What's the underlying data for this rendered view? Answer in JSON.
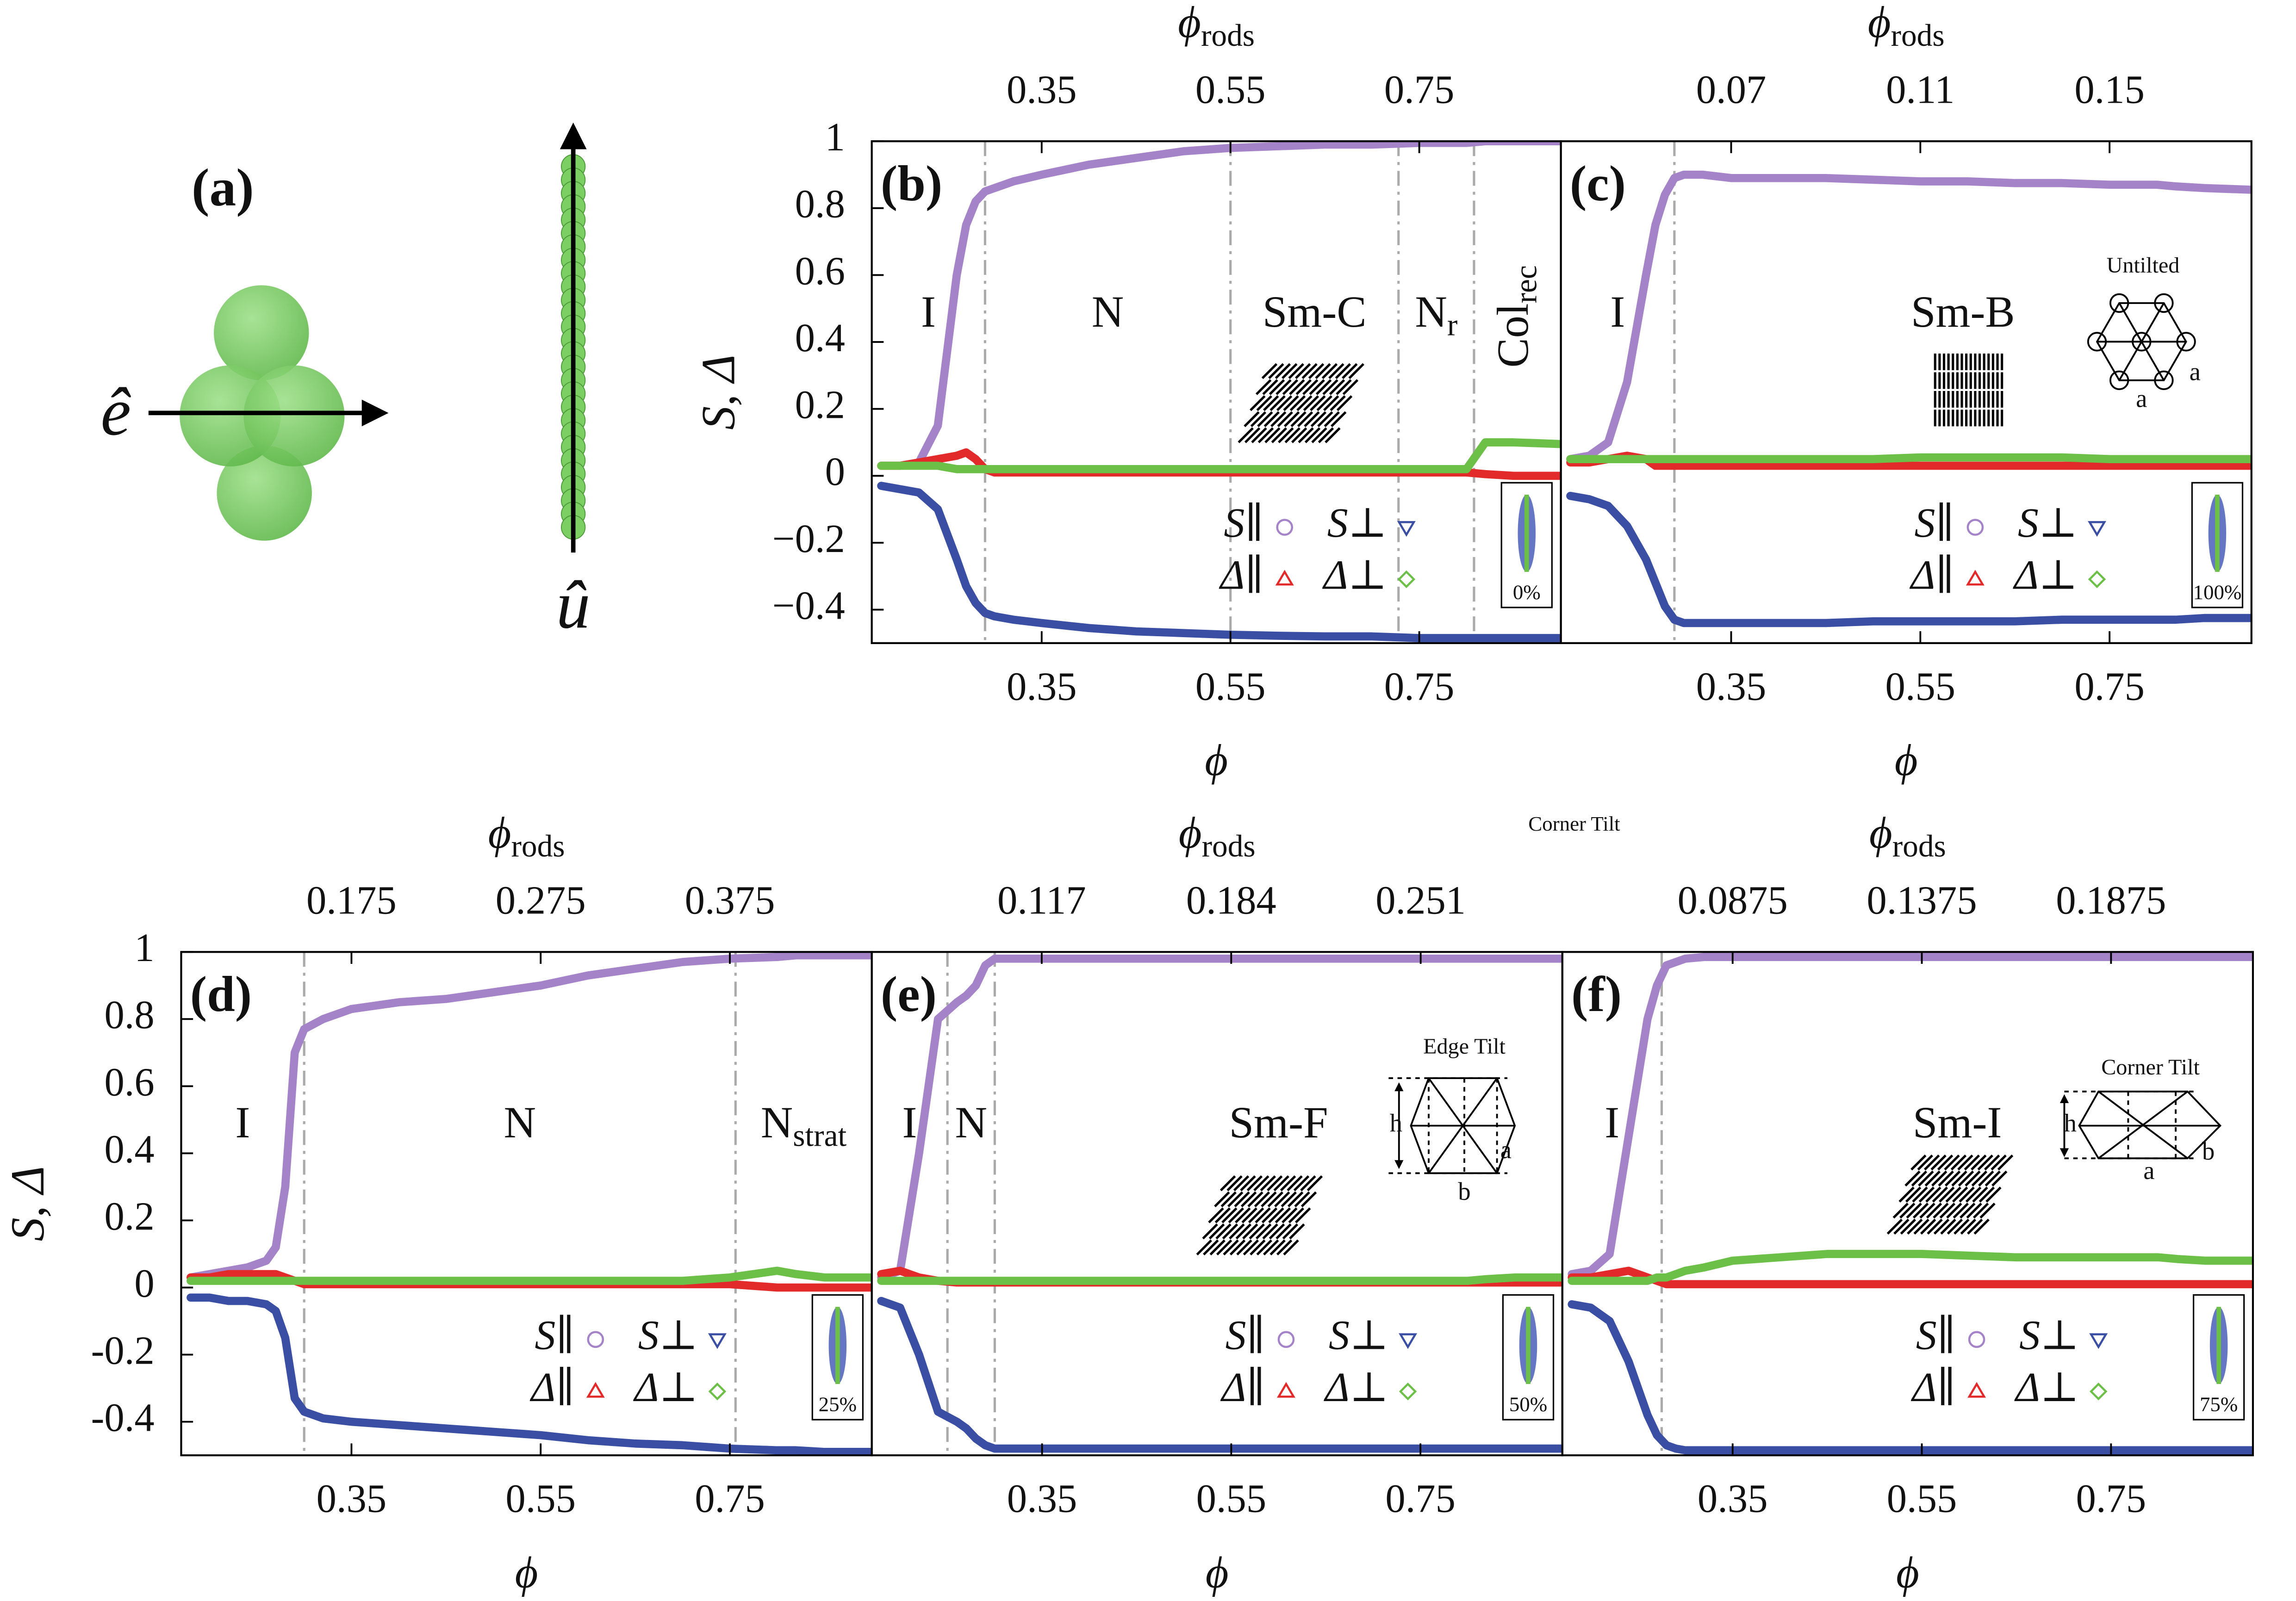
{
  "panel_a": {
    "label": "(a)",
    "e_label": "ê",
    "u_label": "û"
  },
  "note": "Corner Tilt",
  "chart_data": [
    {
      "type": "line",
      "panel_label": "(b)",
      "xlabel": "ϕ",
      "x2label": "ϕ",
      "x2label_sub": "rods",
      "ylabel": "S, Δ",
      "xlim": [
        0.17,
        0.9
      ],
      "xticks": [
        0.35,
        0.55,
        0.75
      ],
      "x2lim": [
        0.17,
        0.9
      ],
      "x2ticks": [
        0.35,
        0.55,
        0.75
      ],
      "ylim": [
        -0.5,
        1
      ],
      "yticks": [
        {
          "value": -0.4,
          "label": "−0.4"
        },
        {
          "value": -0.2,
          "label": "−0.2"
        },
        0,
        0.2,
        0.4,
        0.6,
        0.8,
        1
      ],
      "legend": "lower right",
      "inset_label": "0%",
      "transitions": [
        0.29,
        0.55,
        0.728,
        0.808
      ],
      "phases": [
        {
          "label": "I"
        },
        {
          "label": "N"
        },
        {
          "label": "Sm-C"
        },
        {
          "label": "N",
          "sub": "r"
        },
        {
          "label": "Col",
          "sub": "rec",
          "rotate": true
        }
      ],
      "x": [
        0.18,
        0.2,
        0.22,
        0.24,
        0.26,
        0.27,
        0.28,
        0.29,
        0.3,
        0.32,
        0.35,
        0.4,
        0.45,
        0.5,
        0.55,
        0.6,
        0.65,
        0.7,
        0.75,
        0.8,
        0.82,
        0.85,
        0.9
      ],
      "series": [
        {
          "name": "S∥",
          "color": "#a583c9",
          "marker": "circle",
          "values": [
            0.03,
            0.03,
            0.04,
            0.15,
            0.6,
            0.75,
            0.82,
            0.85,
            0.86,
            0.88,
            0.9,
            0.93,
            0.95,
            0.97,
            0.98,
            0.985,
            0.99,
            0.99,
            0.995,
            0.995,
            1,
            1,
            1
          ]
        },
        {
          "name": "S⊥",
          "color": "#3a4ea3",
          "marker": "triangle-down",
          "values": [
            -0.03,
            -0.04,
            -0.05,
            -0.1,
            -0.25,
            -0.33,
            -0.38,
            -0.41,
            -0.42,
            -0.43,
            -0.44,
            -0.455,
            -0.465,
            -0.47,
            -0.475,
            -0.478,
            -0.48,
            -0.48,
            -0.485,
            -0.485,
            -0.485,
            -0.485,
            -0.485
          ]
        },
        {
          "name": "Δ∥",
          "color": "#e32a2a",
          "marker": "triangle-up",
          "values": [
            0.03,
            0.03,
            0.04,
            0.05,
            0.06,
            0.07,
            0.05,
            0.02,
            0.01,
            0.01,
            0.01,
            0.01,
            0.01,
            0.01,
            0.01,
            0.01,
            0.01,
            0.01,
            0.01,
            0.01,
            0.005,
            0,
            0
          ]
        },
        {
          "name": "Δ⊥",
          "color": "#6cbf47",
          "marker": "diamond",
          "values": [
            0.03,
            0.03,
            0.03,
            0.03,
            0.02,
            0.02,
            0.02,
            0.02,
            0.02,
            0.02,
            0.02,
            0.02,
            0.02,
            0.02,
            0.02,
            0.02,
            0.02,
            0.02,
            0.02,
            0.02,
            0.1,
            0.1,
            0.095
          ]
        }
      ]
    },
    {
      "type": "line",
      "panel_label": "(c)",
      "xlabel": "ϕ",
      "x2label": "ϕ",
      "x2label_sub": "rods",
      "xlim": [
        0.17,
        0.9
      ],
      "xticks": [
        0.35,
        0.55,
        0.75
      ],
      "x2lim": [
        0.034,
        0.18
      ],
      "x2ticks": [
        0.07,
        0.11,
        0.15
      ],
      "ylim": [
        -0.5,
        1
      ],
      "legend": "lower right",
      "inset_label": "100%",
      "transitions": [
        0.29
      ],
      "phases": [
        {
          "label": "I"
        },
        {
          "label": "Sm-B"
        }
      ],
      "lattice": {
        "title": "Untilted",
        "labels": [
          "a",
          "a"
        ]
      },
      "x": [
        0.18,
        0.2,
        0.22,
        0.24,
        0.26,
        0.27,
        0.28,
        0.29,
        0.3,
        0.32,
        0.35,
        0.4,
        0.45,
        0.5,
        0.55,
        0.6,
        0.65,
        0.7,
        0.75,
        0.8,
        0.82,
        0.85,
        0.9
      ],
      "series": [
        {
          "name": "S∥",
          "color": "#a583c9",
          "marker": "circle",
          "values": [
            0.05,
            0.06,
            0.1,
            0.28,
            0.6,
            0.75,
            0.84,
            0.89,
            0.9,
            0.9,
            0.89,
            0.89,
            0.89,
            0.885,
            0.88,
            0.88,
            0.875,
            0.875,
            0.87,
            0.87,
            0.865,
            0.86,
            0.855
          ]
        },
        {
          "name": "S⊥",
          "color": "#3a4ea3",
          "marker": "triangle-down",
          "values": [
            -0.06,
            -0.07,
            -0.09,
            -0.15,
            -0.25,
            -0.32,
            -0.39,
            -0.43,
            -0.44,
            -0.44,
            -0.44,
            -0.44,
            -0.44,
            -0.435,
            -0.435,
            -0.435,
            -0.435,
            -0.43,
            -0.43,
            -0.43,
            -0.43,
            -0.425,
            -0.425
          ]
        },
        {
          "name": "Δ∥",
          "color": "#e32a2a",
          "marker": "triangle-up",
          "values": [
            0.04,
            0.04,
            0.05,
            0.06,
            0.05,
            0.03,
            0.03,
            0.03,
            0.03,
            0.03,
            0.03,
            0.03,
            0.03,
            0.03,
            0.03,
            0.03,
            0.03,
            0.03,
            0.03,
            0.03,
            0.03,
            0.03,
            0.03
          ]
        },
        {
          "name": "Δ⊥",
          "color": "#6cbf47",
          "marker": "diamond",
          "values": [
            0.05,
            0.05,
            0.05,
            0.05,
            0.05,
            0.05,
            0.05,
            0.05,
            0.05,
            0.05,
            0.05,
            0.05,
            0.05,
            0.05,
            0.055,
            0.055,
            0.055,
            0.055,
            0.05,
            0.05,
            0.05,
            0.05,
            0.05
          ]
        }
      ]
    },
    {
      "type": "line",
      "panel_label": "(d)",
      "xlabel": "ϕ",
      "x2label": "ϕ",
      "x2label_sub": "rods",
      "ylabel": "S, Δ",
      "xlim": [
        0.17,
        0.9
      ],
      "xticks": [
        0.35,
        0.55,
        0.75
      ],
      "x2lim": [
        0.085,
        0.45
      ],
      "x2ticks": [
        0.175,
        0.275,
        0.375
      ],
      "ylim": [
        -0.5,
        1
      ],
      "yticks": [
        -0.4,
        -0.2,
        0,
        0.2,
        0.4,
        0.6,
        0.8,
        1
      ],
      "legend": "lower right",
      "inset_label": "25%",
      "transitions": [
        0.3,
        0.756
      ],
      "phases": [
        {
          "label": "I"
        },
        {
          "label": "N"
        },
        {
          "label": "N",
          "sub": "strat"
        }
      ],
      "x": [
        0.18,
        0.2,
        0.22,
        0.24,
        0.26,
        0.27,
        0.28,
        0.29,
        0.3,
        0.32,
        0.35,
        0.4,
        0.45,
        0.5,
        0.55,
        0.6,
        0.65,
        0.7,
        0.75,
        0.8,
        0.82,
        0.85,
        0.9
      ],
      "series": [
        {
          "name": "S∥",
          "color": "#a583c9",
          "marker": "circle",
          "values": [
            0.03,
            0.04,
            0.05,
            0.06,
            0.08,
            0.12,
            0.3,
            0.7,
            0.77,
            0.8,
            0.83,
            0.85,
            0.86,
            0.88,
            0.9,
            0.93,
            0.95,
            0.97,
            0.98,
            0.985,
            0.99,
            0.99,
            0.99
          ]
        },
        {
          "name": "S⊥",
          "color": "#3a4ea3",
          "marker": "triangle-down",
          "values": [
            -0.03,
            -0.03,
            -0.04,
            -0.04,
            -0.05,
            -0.07,
            -0.15,
            -0.33,
            -0.37,
            -0.39,
            -0.4,
            -0.41,
            -0.42,
            -0.43,
            -0.44,
            -0.455,
            -0.465,
            -0.47,
            -0.48,
            -0.485,
            -0.485,
            -0.49,
            -0.49
          ]
        },
        {
          "name": "Δ∥",
          "color": "#e32a2a",
          "marker": "triangle-up",
          "values": [
            0.03,
            0.03,
            0.04,
            0.04,
            0.04,
            0.04,
            0.03,
            0.02,
            0.01,
            0.01,
            0.01,
            0.01,
            0.01,
            0.01,
            0.01,
            0.01,
            0.01,
            0.01,
            0.01,
            0,
            0,
            0,
            0
          ]
        },
        {
          "name": "Δ⊥",
          "color": "#6cbf47",
          "marker": "diamond",
          "values": [
            0.02,
            0.02,
            0.02,
            0.02,
            0.02,
            0.02,
            0.02,
            0.02,
            0.02,
            0.02,
            0.02,
            0.02,
            0.02,
            0.02,
            0.02,
            0.02,
            0.02,
            0.02,
            0.03,
            0.05,
            0.04,
            0.03,
            0.03
          ]
        }
      ]
    },
    {
      "type": "line",
      "panel_label": "(e)",
      "xlabel": "ϕ",
      "x2label": "ϕ",
      "x2label_sub": "rods",
      "xlim": [
        0.17,
        0.9
      ],
      "xticks": [
        0.35,
        0.55,
        0.75
      ],
      "x2lim": [
        0.0569,
        0.3011
      ],
      "x2ticks": [
        0.117,
        0.184,
        0.251
      ],
      "ylim": [
        -0.5,
        1
      ],
      "legend": "lower right",
      "inset_label": "50%",
      "transitions": [
        0.25,
        0.3
      ],
      "phases": [
        {
          "label": "I"
        },
        {
          "label": "N"
        },
        {
          "label": "Sm-F"
        }
      ],
      "lattice": {
        "title": "Edge Tilt",
        "labels": [
          "h",
          "a",
          "b"
        ]
      },
      "x": [
        0.18,
        0.2,
        0.22,
        0.24,
        0.26,
        0.27,
        0.28,
        0.29,
        0.3,
        0.32,
        0.35,
        0.4,
        0.45,
        0.5,
        0.55,
        0.6,
        0.65,
        0.7,
        0.75,
        0.8,
        0.82,
        0.85,
        0.9
      ],
      "series": [
        {
          "name": "S∥",
          "color": "#a583c9",
          "marker": "circle",
          "values": [
            0.03,
            0.05,
            0.4,
            0.8,
            0.85,
            0.87,
            0.9,
            0.96,
            0.98,
            0.98,
            0.98,
            0.98,
            0.98,
            0.98,
            0.98,
            0.98,
            0.98,
            0.98,
            0.98,
            0.98,
            0.98,
            0.98,
            0.98
          ]
        },
        {
          "name": "S⊥",
          "color": "#3a4ea3",
          "marker": "triangle-down",
          "values": [
            -0.04,
            -0.06,
            -0.2,
            -0.37,
            -0.4,
            -0.42,
            -0.45,
            -0.47,
            -0.48,
            -0.48,
            -0.48,
            -0.48,
            -0.48,
            -0.48,
            -0.48,
            -0.48,
            -0.48,
            -0.48,
            -0.48,
            -0.48,
            -0.48,
            -0.48,
            -0.48
          ]
        },
        {
          "name": "Δ∥",
          "color": "#e32a2a",
          "marker": "triangle-up",
          "values": [
            0.04,
            0.05,
            0.03,
            0.02,
            0.015,
            0.015,
            0.015,
            0.015,
            0.015,
            0.015,
            0.015,
            0.015,
            0.015,
            0.015,
            0.015,
            0.015,
            0.015,
            0.015,
            0.015,
            0.015,
            0.015,
            0.015,
            0.015
          ]
        },
        {
          "name": "Δ⊥",
          "color": "#6cbf47",
          "marker": "diamond",
          "values": [
            0.02,
            0.02,
            0.02,
            0.02,
            0.02,
            0.02,
            0.02,
            0.02,
            0.02,
            0.02,
            0.02,
            0.02,
            0.02,
            0.02,
            0.02,
            0.02,
            0.02,
            0.02,
            0.02,
            0.02,
            0.025,
            0.03,
            0.03
          ]
        }
      ]
    },
    {
      "type": "line",
      "panel_label": "(f)",
      "xlabel": "ϕ",
      "x2label": "ϕ",
      "x2label_sub": "rods",
      "xlim": [
        0.17,
        0.9
      ],
      "xticks": [
        0.35,
        0.55,
        0.75
      ],
      "x2lim": [
        0.0425,
        0.225
      ],
      "x2ticks": [
        0.0875,
        0.1375,
        0.1875
      ],
      "ylim": [
        -0.5,
        1
      ],
      "legend": "lower right",
      "inset_label": "75%",
      "transitions": [
        0.275
      ],
      "phases": [
        {
          "label": "I"
        },
        {
          "label": "Sm-I"
        }
      ],
      "lattice": {
        "title": "Corner Tilt",
        "labels": [
          "h",
          "a",
          "b"
        ]
      },
      "x": [
        0.18,
        0.2,
        0.22,
        0.24,
        0.26,
        0.27,
        0.28,
        0.29,
        0.3,
        0.32,
        0.35,
        0.4,
        0.45,
        0.5,
        0.55,
        0.6,
        0.65,
        0.7,
        0.75,
        0.8,
        0.82,
        0.85,
        0.9
      ],
      "series": [
        {
          "name": "S∥",
          "color": "#a583c9",
          "marker": "circle",
          "values": [
            0.04,
            0.05,
            0.1,
            0.45,
            0.8,
            0.9,
            0.96,
            0.97,
            0.98,
            0.985,
            0.985,
            0.985,
            0.985,
            0.985,
            0.985,
            0.985,
            0.985,
            0.985,
            0.985,
            0.985,
            0.985,
            0.985,
            0.985
          ]
        },
        {
          "name": "S⊥",
          "color": "#3a4ea3",
          "marker": "triangle-down",
          "values": [
            -0.05,
            -0.06,
            -0.1,
            -0.22,
            -0.38,
            -0.44,
            -0.47,
            -0.48,
            -0.485,
            -0.485,
            -0.485,
            -0.485,
            -0.485,
            -0.485,
            -0.485,
            -0.485,
            -0.485,
            -0.485,
            -0.485,
            -0.485,
            -0.485,
            -0.485,
            -0.485
          ]
        },
        {
          "name": "Δ∥",
          "color": "#e32a2a",
          "marker": "triangle-up",
          "values": [
            0.03,
            0.03,
            0.04,
            0.05,
            0.03,
            0.02,
            0.01,
            0.01,
            0.01,
            0.01,
            0.01,
            0.01,
            0.01,
            0.01,
            0.01,
            0.01,
            0.01,
            0.01,
            0.01,
            0.01,
            0.01,
            0.01,
            0.01
          ]
        },
        {
          "name": "Δ⊥",
          "color": "#6cbf47",
          "marker": "diamond",
          "values": [
            0.02,
            0.02,
            0.02,
            0.02,
            0.02,
            0.03,
            0.03,
            0.04,
            0.05,
            0.06,
            0.08,
            0.09,
            0.1,
            0.1,
            0.1,
            0.095,
            0.09,
            0.09,
            0.09,
            0.09,
            0.085,
            0.08,
            0.08
          ]
        }
      ]
    }
  ]
}
